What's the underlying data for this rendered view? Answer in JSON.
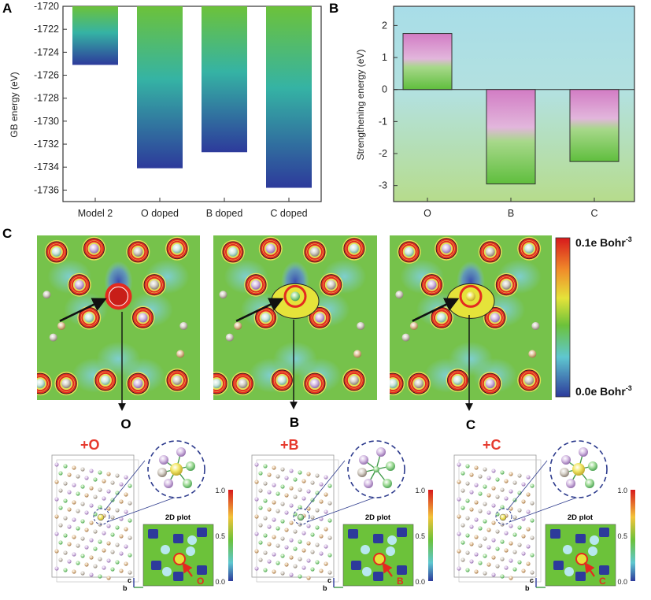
{
  "panels": {
    "a_label": "A",
    "b_label": "B",
    "c_label": "C"
  },
  "chart_data": [
    {
      "type": "bar",
      "panel": "A",
      "categories": [
        "Model 2",
        "O doped",
        "B doped",
        "C doped"
      ],
      "values": [
        -1725.1,
        -1734.1,
        -1732.7,
        -1735.8
      ],
      "baseline": -1720,
      "ylabel": "GB energy (eV)",
      "ylim": [
        -1737,
        -1720
      ],
      "yticks": [
        -1720,
        -1722,
        -1724,
        -1726,
        -1728,
        -1730,
        -1732,
        -1734,
        -1736
      ],
      "ytick_labels": [
        "-1720",
        "-1722",
        "-1724",
        "-1726",
        "-1728",
        "-1730",
        "-1732",
        "-1734",
        "-1736"
      ],
      "grid": false,
      "colors": {
        "top": "#6cc23a",
        "mid": "#33b0a6",
        "bottom": "#2e3c9c"
      }
    },
    {
      "type": "bar",
      "panel": "B",
      "categories": [
        "O",
        "B",
        "C"
      ],
      "values": [
        1.75,
        -2.95,
        -2.25
      ],
      "ylabel": "Strengthening energy (eV)",
      "ylim": [
        -3.5,
        2.6
      ],
      "yticks": [
        2,
        1,
        0,
        -1,
        -2,
        -3
      ],
      "ytick_labels": [
        "2",
        "1",
        "0",
        "-1",
        "-2",
        "-3"
      ],
      "grid": false,
      "colors": {
        "pink": "#d27cc4",
        "green": "#5fbe3d",
        "bg_top": "#a8dde8",
        "bg_bottom": "#b6dc8c"
      }
    }
  ],
  "panel_c": {
    "colorbar_max": "0.1e Bohr",
    "colorbar_min": "0.0e Bohr",
    "colorbar_exp": "-3",
    "maps": [
      {
        "element": "O",
        "mode": "o"
      },
      {
        "element": "B",
        "mode": "b"
      },
      {
        "element": "C",
        "mode": "c"
      }
    ],
    "insets": [
      {
        "label": "+O",
        "plot_title": "2D plot",
        "marker": "O",
        "scale": [
          "1.0",
          "0.5",
          "0.0"
        ],
        "axis_c": "c",
        "axis_b": "b"
      },
      {
        "label": "+B",
        "plot_title": "2D plot",
        "marker": "B",
        "scale": [
          "1.0",
          "0.5",
          "0.0"
        ],
        "axis_c": "c",
        "axis_b": "b"
      },
      {
        "label": "+C",
        "plot_title": "2D plot",
        "marker": "C",
        "scale": [
          "1.0",
          "0.5",
          "0.0"
        ],
        "axis_c": "c",
        "axis_b": "b"
      }
    ],
    "colors": {
      "red": "#e42a1f",
      "arrow": "#111111",
      "label_red": "#e63a2e"
    }
  }
}
